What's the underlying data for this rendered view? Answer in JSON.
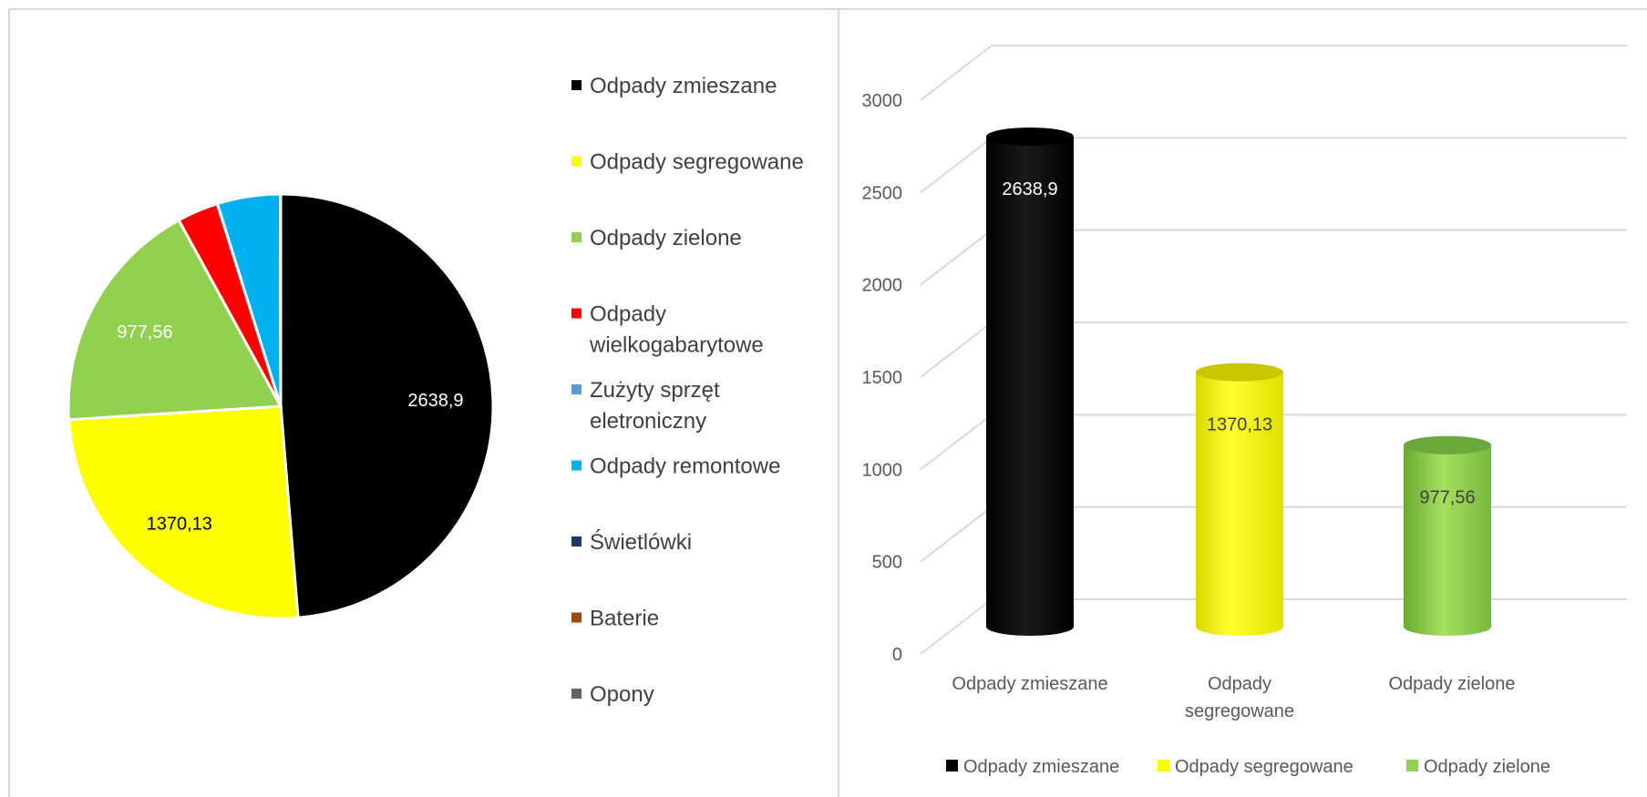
{
  "chart_data": [
    {
      "type": "pie",
      "categories": [
        "Odpady zmieszane",
        "Odpady segregowane",
        "Odpady zielone",
        "Odpady wielkogabarytowe",
        "Zużyty sprzęt eletroniczny",
        "Odpady remontowe",
        "Świetlówki",
        "Baterie",
        "Opony"
      ],
      "values": [
        2638.9,
        1370.13,
        977.56,
        170,
        0.8,
        260,
        0.4,
        0.3,
        0.5
      ],
      "value_labels": [
        "2638,9",
        "1370,13",
        "977,56",
        "",
        "",
        "",
        "",
        "",
        ""
      ],
      "colors": [
        "#000000",
        "#ffff00",
        "#92d050",
        "#ff0000",
        "#5b9bd5",
        "#00b0f0",
        "#203864",
        "#9e480e",
        "#636363"
      ],
      "legend_labels": [
        [
          "Odpady zmieszane"
        ],
        [
          "Odpady segregowane"
        ],
        [
          "Odpady zielone"
        ],
        [
          "Odpady",
          "wielkogabarytowe"
        ],
        [
          "Zużyty sprzęt",
          "eletroniczny"
        ],
        [
          "Odpady remontowe"
        ],
        [
          "Świetlówki"
        ],
        [
          "Baterie"
        ],
        [
          "Opony"
        ]
      ],
      "legend_position": "right"
    },
    {
      "type": "bar",
      "style": "3d-cylinder",
      "categories": [
        "Odpady zmieszane",
        "Odpady segregowane",
        "Odpady zielone"
      ],
      "category_labels": [
        [
          "Odpady zmieszane"
        ],
        [
          "Odpady",
          "segregowane"
        ],
        [
          "Odpady zielone"
        ]
      ],
      "values": [
        2638.9,
        1370.13,
        977.56
      ],
      "value_labels": [
        "2638,9",
        "1370,13",
        "977,56"
      ],
      "colors": [
        "#000000",
        "#ffff00",
        "#92d050"
      ],
      "ylim": [
        0,
        3000
      ],
      "yticks": [
        0,
        500,
        1000,
        1500,
        2000,
        2500,
        3000
      ],
      "grid": true,
      "legend": [
        "Odpady zmieszane",
        "Odpady segregowane",
        "Odpady zielone"
      ],
      "legend_position": "bottom"
    }
  ]
}
